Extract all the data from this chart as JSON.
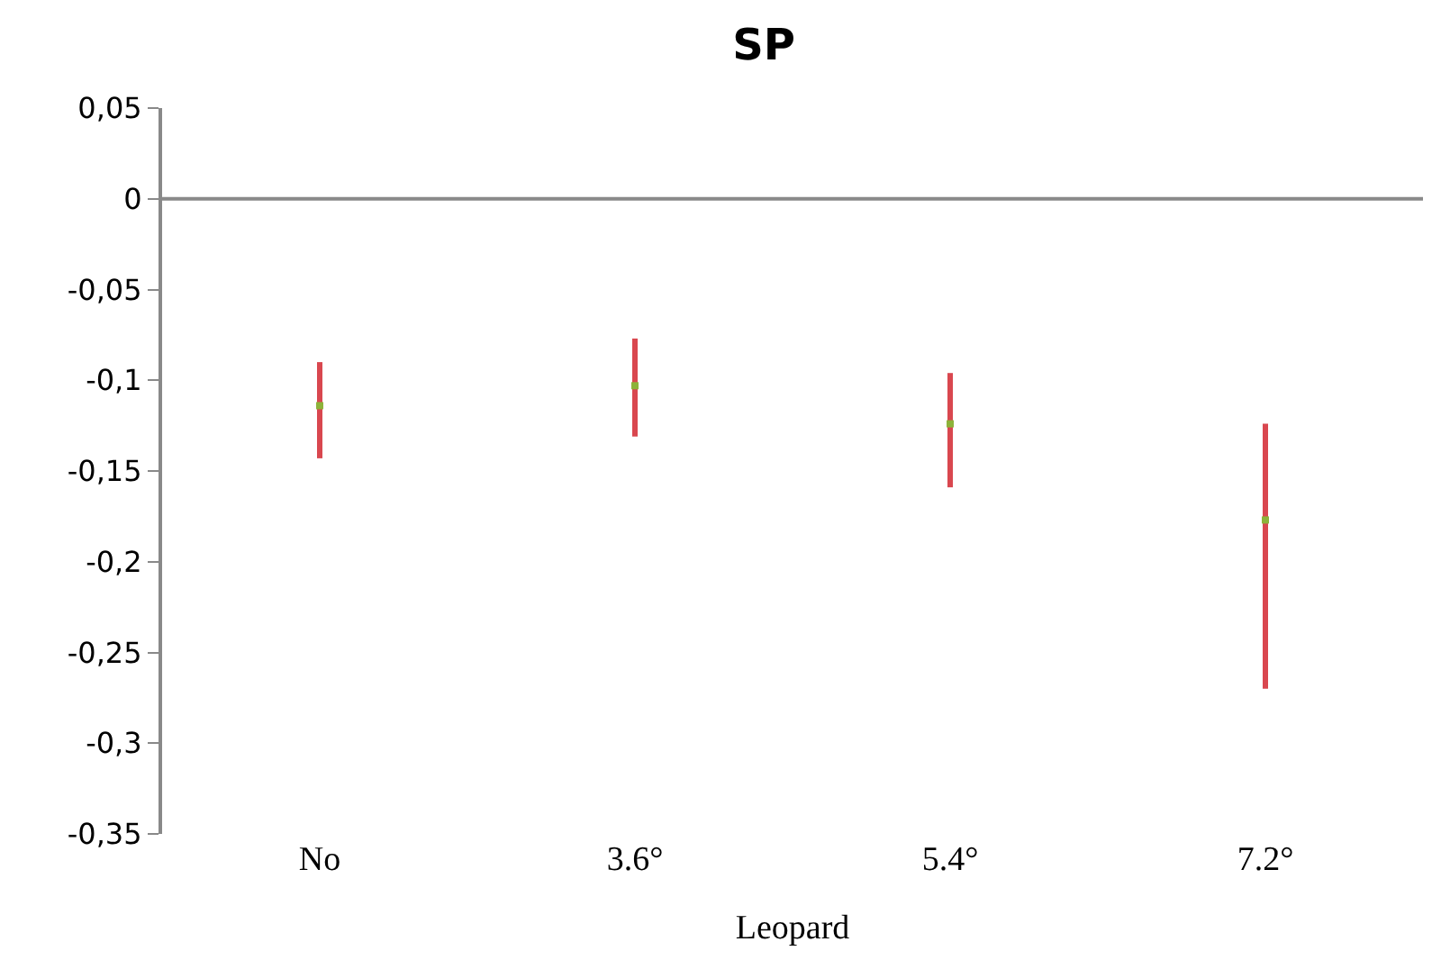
{
  "chart_data": {
    "type": "scatter",
    "title": "SP",
    "xlabel": "Leopard",
    "categories": [
      "No",
      "3.6°",
      "5.4°",
      "7.2°"
    ],
    "series": [
      {
        "color": "#8db33a",
        "values": [
          -0.114,
          -0.103,
          -0.124,
          -0.177
        ],
        "errors": [
          [
            -0.143,
            -0.09
          ],
          [
            -0.131,
            -0.077
          ],
          [
            -0.159,
            -0.096
          ],
          [
            -0.27,
            -0.124
          ]
        ]
      }
    ],
    "ylim": [
      -0.35,
      0.05
    ],
    "yticks": [
      {
        "value": 0.05,
        "label": "0,05"
      },
      0,
      {
        "value": -0.05,
        "label": "-0,05"
      },
      {
        "value": -0.1,
        "label": "-0,1"
      },
      {
        "value": -0.15,
        "label": "-0,15"
      },
      {
        "value": -0.2,
        "label": "-0,2"
      },
      {
        "value": -0.25,
        "label": "-0,25"
      },
      {
        "value": -0.3,
        "label": "-0,3"
      },
      {
        "value": -0.35,
        "label": "-0,35"
      }
    ],
    "ref_lines": [
      {
        "axis": "y",
        "value": 0,
        "color": "#898989"
      }
    ],
    "marker": "square"
  }
}
